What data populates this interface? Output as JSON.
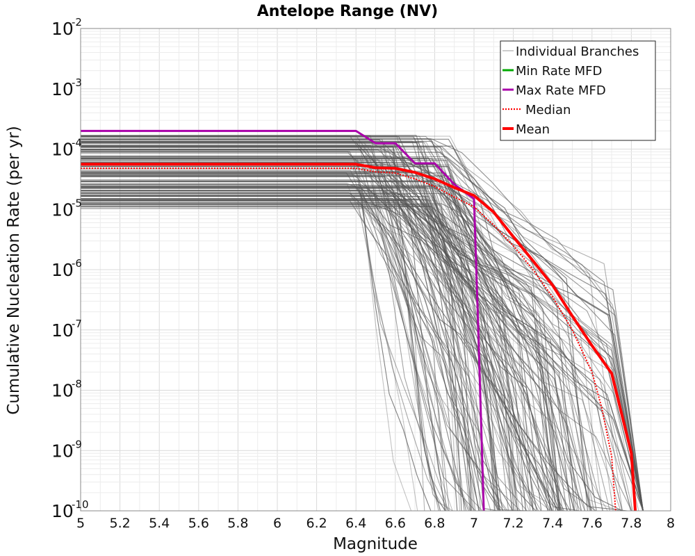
{
  "chart_data": {
    "type": "line",
    "title": "Antelope Range (NV)",
    "xlabel": "Magnitude",
    "ylabel": "Cumulative Nucleation Rate (per yr)",
    "xlim": [
      5,
      8
    ],
    "ylim": [
      1e-10,
      0.01
    ],
    "yscale": "log",
    "grid": true,
    "legend_position": "top-right",
    "x_ticks": [
      "5",
      "5.2",
      "5.4",
      "5.6",
      "5.8",
      "6",
      "6.2",
      "6.4",
      "6.6",
      "6.8",
      "7",
      "7.2",
      "7.4",
      "7.6",
      "7.8",
      "8"
    ],
    "y_ticks": [
      {
        "base": "10",
        "exp": "-2"
      },
      {
        "base": "10",
        "exp": "-3"
      },
      {
        "base": "10",
        "exp": "-4"
      },
      {
        "base": "10",
        "exp": "-5"
      },
      {
        "base": "10",
        "exp": "-6"
      },
      {
        "base": "10",
        "exp": "-7"
      },
      {
        "base": "10",
        "exp": "-8"
      },
      {
        "base": "10",
        "exp": "-9"
      },
      {
        "base": "10",
        "exp": "-10"
      }
    ],
    "series": [
      {
        "name": "Individual Branches",
        "color": "#555555",
        "note": "hundreds of logic-tree branch curves, plateau between 1e-5 and 2e-4 for M<6.5, dropping to below 1e-10 between M6.8 and M7.85"
      },
      {
        "name": "Min Rate MFD",
        "color": "#00aa00",
        "x": [],
        "y": []
      },
      {
        "name": "Max Rate MFD",
        "color": "#aa00aa",
        "x": [
          5.0,
          6.4,
          6.5,
          6.6,
          6.7,
          6.8,
          6.9,
          7.0,
          7.02,
          7.05
        ],
        "y": [
          0.0002,
          0.0002,
          0.000125,
          0.000125,
          5.8e-05,
          5.8e-05,
          2.6e-05,
          1.5e-05,
          1.5e-07,
          1e-10
        ]
      },
      {
        "name": "Median",
        "color": "#ff0000",
        "style": "dotted",
        "x": [
          5.0,
          6.4,
          6.5,
          6.6,
          6.7,
          6.8,
          6.9,
          7.0,
          7.1,
          7.2,
          7.3,
          7.4,
          7.5,
          7.6,
          7.65,
          7.7,
          7.72
        ],
        "y": [
          4.8e-05,
          4.8e-05,
          4.2e-05,
          4e-05,
          3.2e-05,
          2.4e-05,
          1.6e-05,
          1.1e-05,
          5.5e-06,
          2.5e-06,
          1e-06,
          3.5e-07,
          1e-07,
          2e-08,
          5e-09,
          8e-10,
          1e-10
        ]
      },
      {
        "name": "Mean",
        "color": "#ff0000",
        "style": "solid",
        "x": [
          5.0,
          6.4,
          6.5,
          6.6,
          6.7,
          6.8,
          6.9,
          7.0,
          7.1,
          7.2,
          7.3,
          7.4,
          7.5,
          7.6,
          7.7,
          7.8,
          7.82
        ],
        "y": [
          5.6e-05,
          5.6e-05,
          4.9e-05,
          4.8e-05,
          4.1e-05,
          3.2e-05,
          2.3e-05,
          1.7e-05,
          9e-06,
          3.5e-06,
          1.4e-06,
          5.5e-07,
          1.7e-07,
          5.5e-08,
          1.9e-08,
          9e-10,
          1e-10
        ]
      }
    ]
  }
}
